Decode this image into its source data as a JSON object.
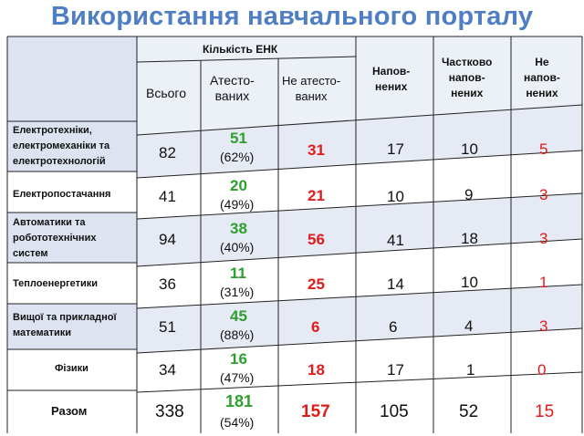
{
  "title": "Використання навчального порталу",
  "headers": {
    "group": "Кількість ЕНК",
    "total": "Всього",
    "attested": [
      "Атесто-",
      "ваних"
    ],
    "not_attested": [
      "Не атесто-",
      "ваних"
    ],
    "filled": [
      "Напов-",
      "нених"
    ],
    "partial": [
      "Частково",
      "напов-",
      "нених"
    ],
    "not_filled": [
      "Не",
      "напов-",
      "нених"
    ]
  },
  "rows": [
    {
      "label": [
        "Електротехніки,",
        "електромеханіки та",
        "електротехнологій"
      ],
      "total": "82",
      "attested": "51",
      "attested_pct": "(62%)",
      "not_attested": "31",
      "filled": "17",
      "partial": "10",
      "not_filled": "5"
    },
    {
      "label": [
        "Електропостачання"
      ],
      "total": "41",
      "attested": "20",
      "attested_pct": "(49%)",
      "not_attested": "21",
      "filled": "10",
      "partial": "9",
      "not_filled": "3"
    },
    {
      "label": [
        "Автоматики та",
        "робототехнічних",
        "систем"
      ],
      "total": "94",
      "attested": "38",
      "attested_pct": "(40%)",
      "not_attested": "56",
      "filled": "41",
      "partial": "18",
      "not_filled": "3"
    },
    {
      "label": [
        "Теплоенергетики"
      ],
      "total": "36",
      "attested": "11",
      "attested_pct": "(31%)",
      "not_attested": "25",
      "filled": "14",
      "partial": "10",
      "not_filled": "1"
    },
    {
      "label": [
        "Вищої та прикладної",
        "математики"
      ],
      "total": "51",
      "attested": "45",
      "attested_pct": "(88%)",
      "not_attested": "6",
      "filled": "6",
      "partial": "4",
      "not_filled": "3"
    },
    {
      "label": [
        "Фізики"
      ],
      "total": "34",
      "attested": "16",
      "attested_pct": "(47%)",
      "not_attested": "18",
      "filled": "17",
      "partial": "1",
      "not_filled": "0"
    }
  ],
  "totals": {
    "label": "Разом",
    "total": "338",
    "attested": "181",
    "attested_pct": "(54%)",
    "not_attested": "157",
    "filled": "105",
    "partial": "52",
    "not_filled": "15"
  },
  "colors": {
    "title": "#4f7ec4",
    "row_fill": "#dde3f0",
    "border": "#222222",
    "green": "#2ea02e",
    "red": "#e01b1b"
  }
}
